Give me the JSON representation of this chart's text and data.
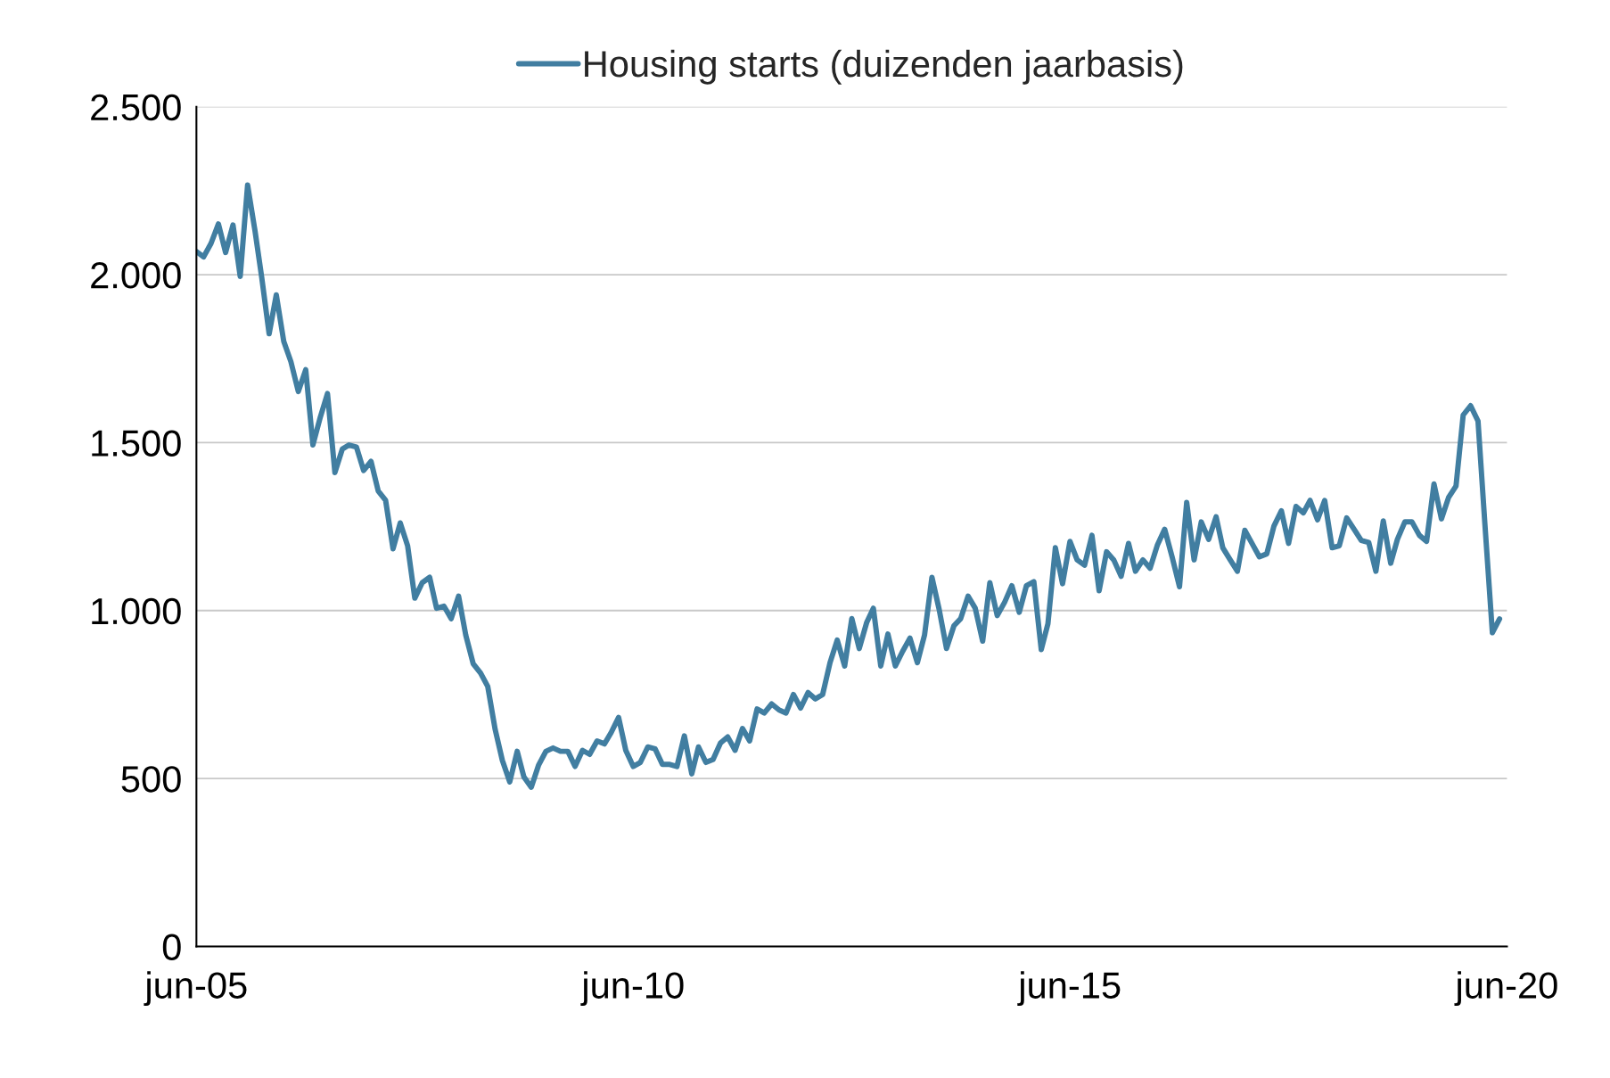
{
  "chart_data": {
    "type": "line",
    "x": [
      "2005-06",
      "2005-07",
      "2005-08",
      "2005-09",
      "2005-10",
      "2005-11",
      "2005-12",
      "2006-01",
      "2006-02",
      "2006-03",
      "2006-04",
      "2006-05",
      "2006-06",
      "2006-07",
      "2006-08",
      "2006-09",
      "2006-10",
      "2006-11",
      "2006-12",
      "2007-01",
      "2007-02",
      "2007-03",
      "2007-04",
      "2007-05",
      "2007-06",
      "2007-07",
      "2007-08",
      "2007-09",
      "2007-10",
      "2007-11",
      "2007-12",
      "2008-01",
      "2008-02",
      "2008-03",
      "2008-04",
      "2008-05",
      "2008-06",
      "2008-07",
      "2008-08",
      "2008-09",
      "2008-10",
      "2008-11",
      "2008-12",
      "2009-01",
      "2009-02",
      "2009-03",
      "2009-04",
      "2009-05",
      "2009-06",
      "2009-07",
      "2009-08",
      "2009-09",
      "2009-10",
      "2009-11",
      "2009-12",
      "2010-01",
      "2010-02",
      "2010-03",
      "2010-04",
      "2010-05",
      "2010-06",
      "2010-07",
      "2010-08",
      "2010-09",
      "2010-10",
      "2010-11",
      "2010-12",
      "2011-01",
      "2011-02",
      "2011-03",
      "2011-04",
      "2011-05",
      "2011-06",
      "2011-07",
      "2011-08",
      "2011-09",
      "2011-10",
      "2011-11",
      "2011-12",
      "2012-01",
      "2012-02",
      "2012-03",
      "2012-04",
      "2012-05",
      "2012-06",
      "2012-07",
      "2012-08",
      "2012-09",
      "2012-10",
      "2012-11",
      "2012-12",
      "2013-01",
      "2013-02",
      "2013-03",
      "2013-04",
      "2013-05",
      "2013-06",
      "2013-07",
      "2013-08",
      "2013-09",
      "2013-10",
      "2013-11",
      "2013-12",
      "2014-01",
      "2014-02",
      "2014-03",
      "2014-04",
      "2014-05",
      "2014-06",
      "2014-07",
      "2014-08",
      "2014-09",
      "2014-10",
      "2014-11",
      "2014-12",
      "2015-01",
      "2015-02",
      "2015-03",
      "2015-04",
      "2015-05",
      "2015-06",
      "2015-07",
      "2015-08",
      "2015-09",
      "2015-10",
      "2015-11",
      "2015-12",
      "2016-01",
      "2016-02",
      "2016-03",
      "2016-04",
      "2016-05",
      "2016-06",
      "2016-07",
      "2016-08",
      "2016-09",
      "2016-10",
      "2016-11",
      "2016-12",
      "2017-01",
      "2017-02",
      "2017-03",
      "2017-04",
      "2017-05",
      "2017-06",
      "2017-07",
      "2017-08",
      "2017-09",
      "2017-10",
      "2017-11",
      "2017-12",
      "2018-01",
      "2018-02",
      "2018-03",
      "2018-04",
      "2018-05",
      "2018-06",
      "2018-07",
      "2018-08",
      "2018-09",
      "2018-10",
      "2018-11",
      "2018-12",
      "2019-01",
      "2019-02",
      "2019-03",
      "2019-04",
      "2019-05",
      "2019-06",
      "2019-07",
      "2019-08",
      "2019-09",
      "2019-10",
      "2019-11",
      "2019-12",
      "2020-01",
      "2020-02",
      "2020-03",
      "2020-04",
      "2020-05"
    ],
    "series": [
      {
        "name": "Housing starts (duizenden jaarbasis)",
        "color": "#417ea1",
        "values": [
          2069,
          2053,
          2093,
          2151,
          2066,
          2148,
          1995,
          2267,
          2130,
          1992,
          1824,
          1940,
          1802,
          1741,
          1652,
          1717,
          1493,
          1576,
          1646,
          1411,
          1481,
          1493,
          1487,
          1417,
          1444,
          1356,
          1328,
          1184,
          1261,
          1193,
          1037,
          1083,
          1099,
          1007,
          1013,
          976,
          1043,
          927,
          842,
          814,
          774,
          646,
          554,
          490,
          581,
          505,
          474,
          539,
          581,
          591,
          581,
          581,
          536,
          584,
          572,
          612,
          603,
          637,
          682,
          584,
          536,
          548,
          594,
          588,
          542,
          542,
          536,
          627,
          514,
          594,
          548,
          557,
          606,
          624,
          584,
          649,
          612,
          707,
          695,
          722,
          704,
          695,
          750,
          710,
          756,
          737,
          750,
          845,
          912,
          835,
          976,
          887,
          964,
          1007,
          835,
          930,
          835,
          878,
          918,
          845,
          927,
          1099,
          1004,
          887,
          955,
          976,
          1043,
          1007,
          909,
          1083,
          985,
          1025,
          1074,
          995,
          1074,
          1086,
          884,
          961,
          1187,
          1080,
          1206,
          1151,
          1135,
          1224,
          1059,
          1175,
          1151,
          1102,
          1200,
          1117,
          1151,
          1126,
          1196,
          1242,
          1160,
          1071,
          1322,
          1151,
          1264,
          1212,
          1279,
          1187,
          1151,
          1117,
          1239,
          1200,
          1160,
          1169,
          1252,
          1297,
          1200,
          1310,
          1291,
          1328,
          1270,
          1328,
          1187,
          1193,
          1276,
          1242,
          1209,
          1203,
          1117,
          1267,
          1141,
          1212,
          1264,
          1264,
          1224,
          1206,
          1377,
          1273,
          1337,
          1371,
          1582,
          1610,
          1564,
          1255,
          934,
          975
        ]
      }
    ],
    "xlim": [
      "2005-06",
      "2020-06"
    ],
    "xticks": [
      {
        "value": "2005-06",
        "label": "jun-05"
      },
      {
        "value": "2010-06",
        "label": "jun-10"
      },
      {
        "value": "2015-06",
        "label": "jun-15"
      },
      {
        "value": "2020-06",
        "label": "jun-20"
      }
    ],
    "ylim": [
      0,
      2500
    ],
    "yticks": [
      0,
      500,
      {
        "value": 1000,
        "label": "1.000"
      },
      {
        "value": 1500,
        "label": "1.500"
      },
      {
        "value": 2000,
        "label": "2.000"
      },
      {
        "value": 2500,
        "label": "2.500"
      }
    ],
    "grid": "y",
    "legend": "top",
    "marker": "none",
    "line_style": "solid"
  }
}
